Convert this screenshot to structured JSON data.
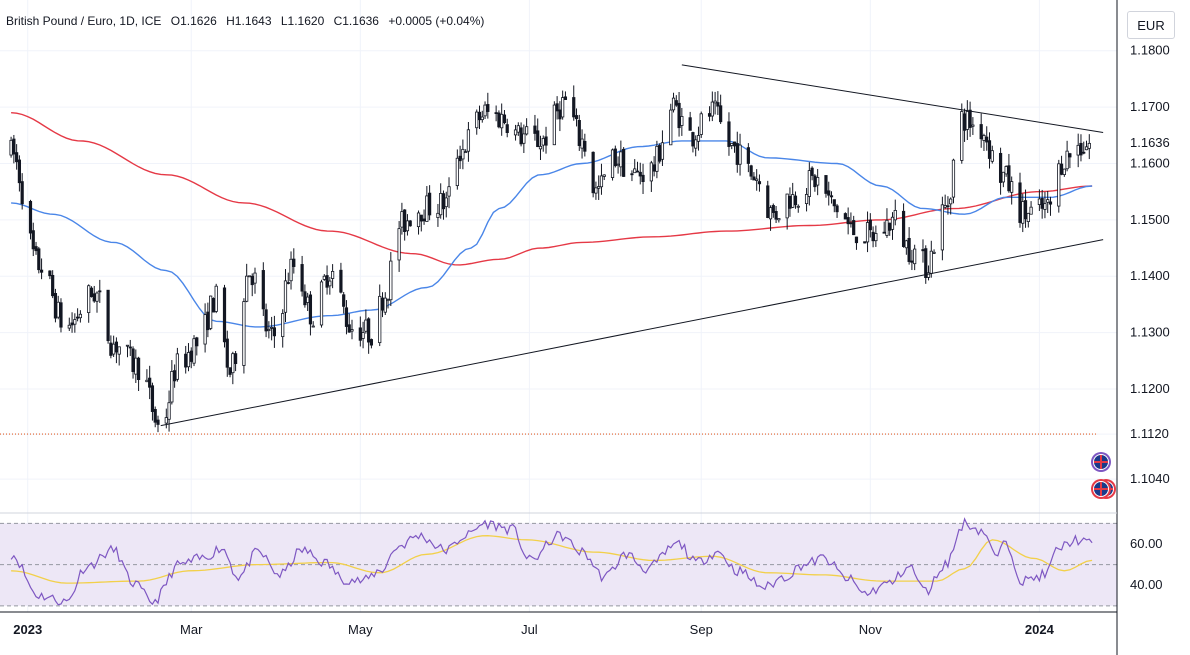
{
  "header": {
    "symbol": "British Pound / Euro, 1D, ICE",
    "open": "O1.1626",
    "high": "H1.1643",
    "low": "L1.1620",
    "close": "C1.1636",
    "change": "+0.0005 (+0.04%)"
  },
  "currency_label": "EUR",
  "colors": {
    "up": "#131722",
    "down": "#131722",
    "ma_fast": "#4a86e8",
    "ma_slow": "#e53946",
    "rsi": "#7e57c2",
    "rsi_ma": "#f2d04a",
    "rsi_band": "#ede7f6",
    "trend": "#131722",
    "dotted_level": "#e0602a"
  },
  "chart_data": [
    {
      "type": "candlestick",
      "name": "price",
      "ylim": [
        1.098,
        1.189
      ],
      "y_ticks": [
        "1.1800",
        "1.1700",
        "1.1600",
        "1.1500",
        "1.1400",
        "1.1300",
        "1.1200",
        "1.1120",
        "1.1040"
      ],
      "last_price_label": "1.1636",
      "x_labels": [
        "2023",
        "Mar",
        "May",
        "Jul",
        "Sep",
        "Nov",
        "2024"
      ],
      "date_range": [
        "2022-12-26",
        "2024-01-20"
      ],
      "last_price": 1.1636,
      "ohlc_summary": {
        "open": 1.1626,
        "high": 1.1643,
        "low": 1.162,
        "close": 1.1636
      },
      "price_anchors": [
        [
          "2022-12-26",
          1.162
        ],
        [
          "2023-01-05",
          1.142
        ],
        [
          "2023-01-15",
          1.131
        ],
        [
          "2023-01-25",
          1.137
        ],
        [
          "2023-02-01",
          1.128
        ],
        [
          "2023-02-10",
          1.124
        ],
        [
          "2023-02-18",
          1.113
        ],
        [
          "2023-02-24",
          1.124
        ],
        [
          "2023-03-03",
          1.128
        ],
        [
          "2023-03-10",
          1.136
        ],
        [
          "2023-03-15",
          1.123
        ],
        [
          "2023-03-22",
          1.141
        ],
        [
          "2023-03-30",
          1.129
        ],
        [
          "2023-04-07",
          1.142
        ],
        [
          "2023-04-14",
          1.133
        ],
        [
          "2023-04-20",
          1.141
        ],
        [
          "2023-04-28",
          1.131
        ],
        [
          "2023-05-05",
          1.13
        ],
        [
          "2023-05-10",
          1.137
        ],
        [
          "2023-05-15",
          1.149
        ],
        [
          "2023-05-22",
          1.152
        ],
        [
          "2023-06-01",
          1.153
        ],
        [
          "2023-06-05",
          1.162
        ],
        [
          "2023-06-15",
          1.169
        ],
        [
          "2023-06-22",
          1.168
        ],
        [
          "2023-06-27",
          1.165
        ],
        [
          "2023-07-05",
          1.164
        ],
        [
          "2023-07-14",
          1.171
        ],
        [
          "2023-07-20",
          1.164
        ],
        [
          "2023-07-25",
          1.155
        ],
        [
          "2023-08-01",
          1.161
        ],
        [
          "2023-08-08",
          1.158
        ],
        [
          "2023-08-14",
          1.159
        ],
        [
          "2023-08-22",
          1.17
        ],
        [
          "2023-08-28",
          1.165
        ],
        [
          "2023-09-05",
          1.169
        ],
        [
          "2023-09-12",
          1.163
        ],
        [
          "2023-09-20",
          1.158
        ],
        [
          "2023-09-27",
          1.151
        ],
        [
          "2023-10-03",
          1.154
        ],
        [
          "2023-10-12",
          1.157
        ],
        [
          "2023-10-20",
          1.152
        ],
        [
          "2023-10-26",
          1.148
        ],
        [
          "2023-11-02",
          1.147
        ],
        [
          "2023-11-10",
          1.15
        ],
        [
          "2023-11-15",
          1.145
        ],
        [
          "2023-11-21",
          1.142
        ],
        [
          "2023-11-28",
          1.152
        ],
        [
          "2023-12-04",
          1.168
        ],
        [
          "2023-12-11",
          1.166
        ],
        [
          "2023-12-18",
          1.158
        ],
        [
          "2023-12-27",
          1.151
        ],
        [
          "2024-01-04",
          1.152
        ],
        [
          "2024-01-10",
          1.161
        ],
        [
          "2024-01-15",
          1.163
        ],
        [
          "2024-01-20",
          1.1636
        ]
      ],
      "ma_fast_anchors": [
        [
          "2022-12-26",
          1.153
        ],
        [
          "2023-01-10",
          1.151
        ],
        [
          "2023-02-01",
          1.146
        ],
        [
          "2023-02-20",
          1.141
        ],
        [
          "2023-03-10",
          1.132
        ],
        [
          "2023-03-25",
          1.131
        ],
        [
          "2023-04-20",
          1.133
        ],
        [
          "2023-05-05",
          1.134
        ],
        [
          "2023-05-25",
          1.138
        ],
        [
          "2023-06-10",
          1.145
        ],
        [
          "2023-06-20",
          1.152
        ],
        [
          "2023-07-05",
          1.158
        ],
        [
          "2023-07-20",
          1.16
        ],
        [
          "2023-08-10",
          1.163
        ],
        [
          "2023-08-25",
          1.164
        ],
        [
          "2023-09-10",
          1.164
        ],
        [
          "2023-09-25",
          1.161
        ],
        [
          "2023-10-20",
          1.16
        ],
        [
          "2023-11-05",
          1.156
        ],
        [
          "2023-11-20",
          1.152
        ],
        [
          "2023-12-05",
          1.151
        ],
        [
          "2023-12-20",
          1.154
        ],
        [
          "2024-01-05",
          1.154
        ],
        [
          "2024-01-20",
          1.156
        ]
      ],
      "ma_slow_anchors": [
        [
          "2022-12-26",
          1.169
        ],
        [
          "2023-01-20",
          1.164
        ],
        [
          "2023-02-20",
          1.158
        ],
        [
          "2023-03-20",
          1.153
        ],
        [
          "2023-04-20",
          1.148
        ],
        [
          "2023-05-20",
          1.144
        ],
        [
          "2023-06-05",
          1.142
        ],
        [
          "2023-06-20",
          1.143
        ],
        [
          "2023-07-05",
          1.145
        ],
        [
          "2023-07-20",
          1.146
        ],
        [
          "2023-08-15",
          1.147
        ],
        [
          "2023-09-10",
          1.148
        ],
        [
          "2023-10-10",
          1.149
        ],
        [
          "2023-11-05",
          1.15
        ],
        [
          "2023-12-01",
          1.152
        ],
        [
          "2024-01-01",
          1.155
        ],
        [
          "2024-01-20",
          1.156
        ]
      ],
      "trend_lines": [
        {
          "name": "upper-trendline",
          "from": [
            "2023-08-25",
            1.1775
          ],
          "to": [
            "2024-01-24",
            1.1655
          ]
        },
        {
          "name": "lower-trendline",
          "from": [
            "2023-02-18",
            1.1135
          ],
          "to": [
            "2024-01-24",
            1.1465
          ]
        }
      ],
      "horizontal_levels": [
        {
          "name": "dotted-level",
          "value": 1.112
        }
      ]
    },
    {
      "type": "line",
      "name": "rsi",
      "ylim": [
        27,
        75
      ],
      "y_ticks": [
        "60.00",
        "40.00"
      ],
      "band": [
        30,
        70
      ],
      "midline": 50,
      "rsi_anchors": [
        [
          "2022-12-26",
          55
        ],
        [
          "2023-01-05",
          35
        ],
        [
          "2023-01-15",
          32
        ],
        [
          "2023-01-22",
          49
        ],
        [
          "2023-02-01",
          57
        ],
        [
          "2023-02-08",
          41
        ],
        [
          "2023-02-15",
          32
        ],
        [
          "2023-02-25",
          50
        ],
        [
          "2023-03-05",
          53
        ],
        [
          "2023-03-12",
          58
        ],
        [
          "2023-03-18",
          44
        ],
        [
          "2023-03-25",
          56
        ],
        [
          "2023-04-02",
          45
        ],
        [
          "2023-04-10",
          57
        ],
        [
          "2023-04-18",
          51
        ],
        [
          "2023-04-25",
          43
        ],
        [
          "2023-05-02",
          42
        ],
        [
          "2023-05-08",
          47
        ],
        [
          "2023-05-15",
          59
        ],
        [
          "2023-05-22",
          64
        ],
        [
          "2023-06-01",
          57
        ],
        [
          "2023-06-08",
          64
        ],
        [
          "2023-06-15",
          70
        ],
        [
          "2023-06-25",
          67
        ],
        [
          "2023-07-01",
          52
        ],
        [
          "2023-07-12",
          64
        ],
        [
          "2023-07-20",
          56
        ],
        [
          "2023-07-28",
          44
        ],
        [
          "2023-08-05",
          55
        ],
        [
          "2023-08-12",
          48
        ],
        [
          "2023-08-24",
          60
        ],
        [
          "2023-08-30",
          51
        ],
        [
          "2023-09-07",
          56
        ],
        [
          "2023-09-14",
          47
        ],
        [
          "2023-09-24",
          39
        ],
        [
          "2023-10-01",
          44
        ],
        [
          "2023-10-08",
          50
        ],
        [
          "2023-10-15",
          53
        ],
        [
          "2023-10-24",
          43
        ],
        [
          "2023-10-30",
          36
        ],
        [
          "2023-11-08",
          41
        ],
        [
          "2023-11-15",
          49
        ],
        [
          "2023-11-21",
          37
        ],
        [
          "2023-11-28",
          50
        ],
        [
          "2023-12-05",
          70
        ],
        [
          "2023-12-12",
          66
        ],
        [
          "2023-12-16",
          54
        ],
        [
          "2023-12-20",
          60
        ],
        [
          "2023-12-26",
          42
        ],
        [
          "2024-01-03",
          45
        ],
        [
          "2024-01-08",
          58
        ],
        [
          "2024-01-14",
          62
        ],
        [
          "2024-01-20",
          60
        ]
      ],
      "rsi_ma_anchors": [
        [
          "2022-12-26",
          47
        ],
        [
          "2023-01-15",
          41
        ],
        [
          "2023-02-10",
          42
        ],
        [
          "2023-03-01",
          47
        ],
        [
          "2023-03-25",
          50
        ],
        [
          "2023-04-20",
          51
        ],
        [
          "2023-05-08",
          46
        ],
        [
          "2023-05-25",
          55
        ],
        [
          "2023-06-15",
          64
        ],
        [
          "2023-06-30",
          62
        ],
        [
          "2023-07-25",
          56
        ],
        [
          "2023-08-15",
          52
        ],
        [
          "2023-09-05",
          54
        ],
        [
          "2023-09-25",
          46
        ],
        [
          "2023-10-15",
          45
        ],
        [
          "2023-11-05",
          42
        ],
        [
          "2023-11-25",
          42
        ],
        [
          "2023-12-05",
          48
        ],
        [
          "2023-12-15",
          62
        ],
        [
          "2023-12-30",
          53
        ],
        [
          "2024-01-10",
          47
        ],
        [
          "2024-01-20",
          52
        ]
      ]
    }
  ]
}
